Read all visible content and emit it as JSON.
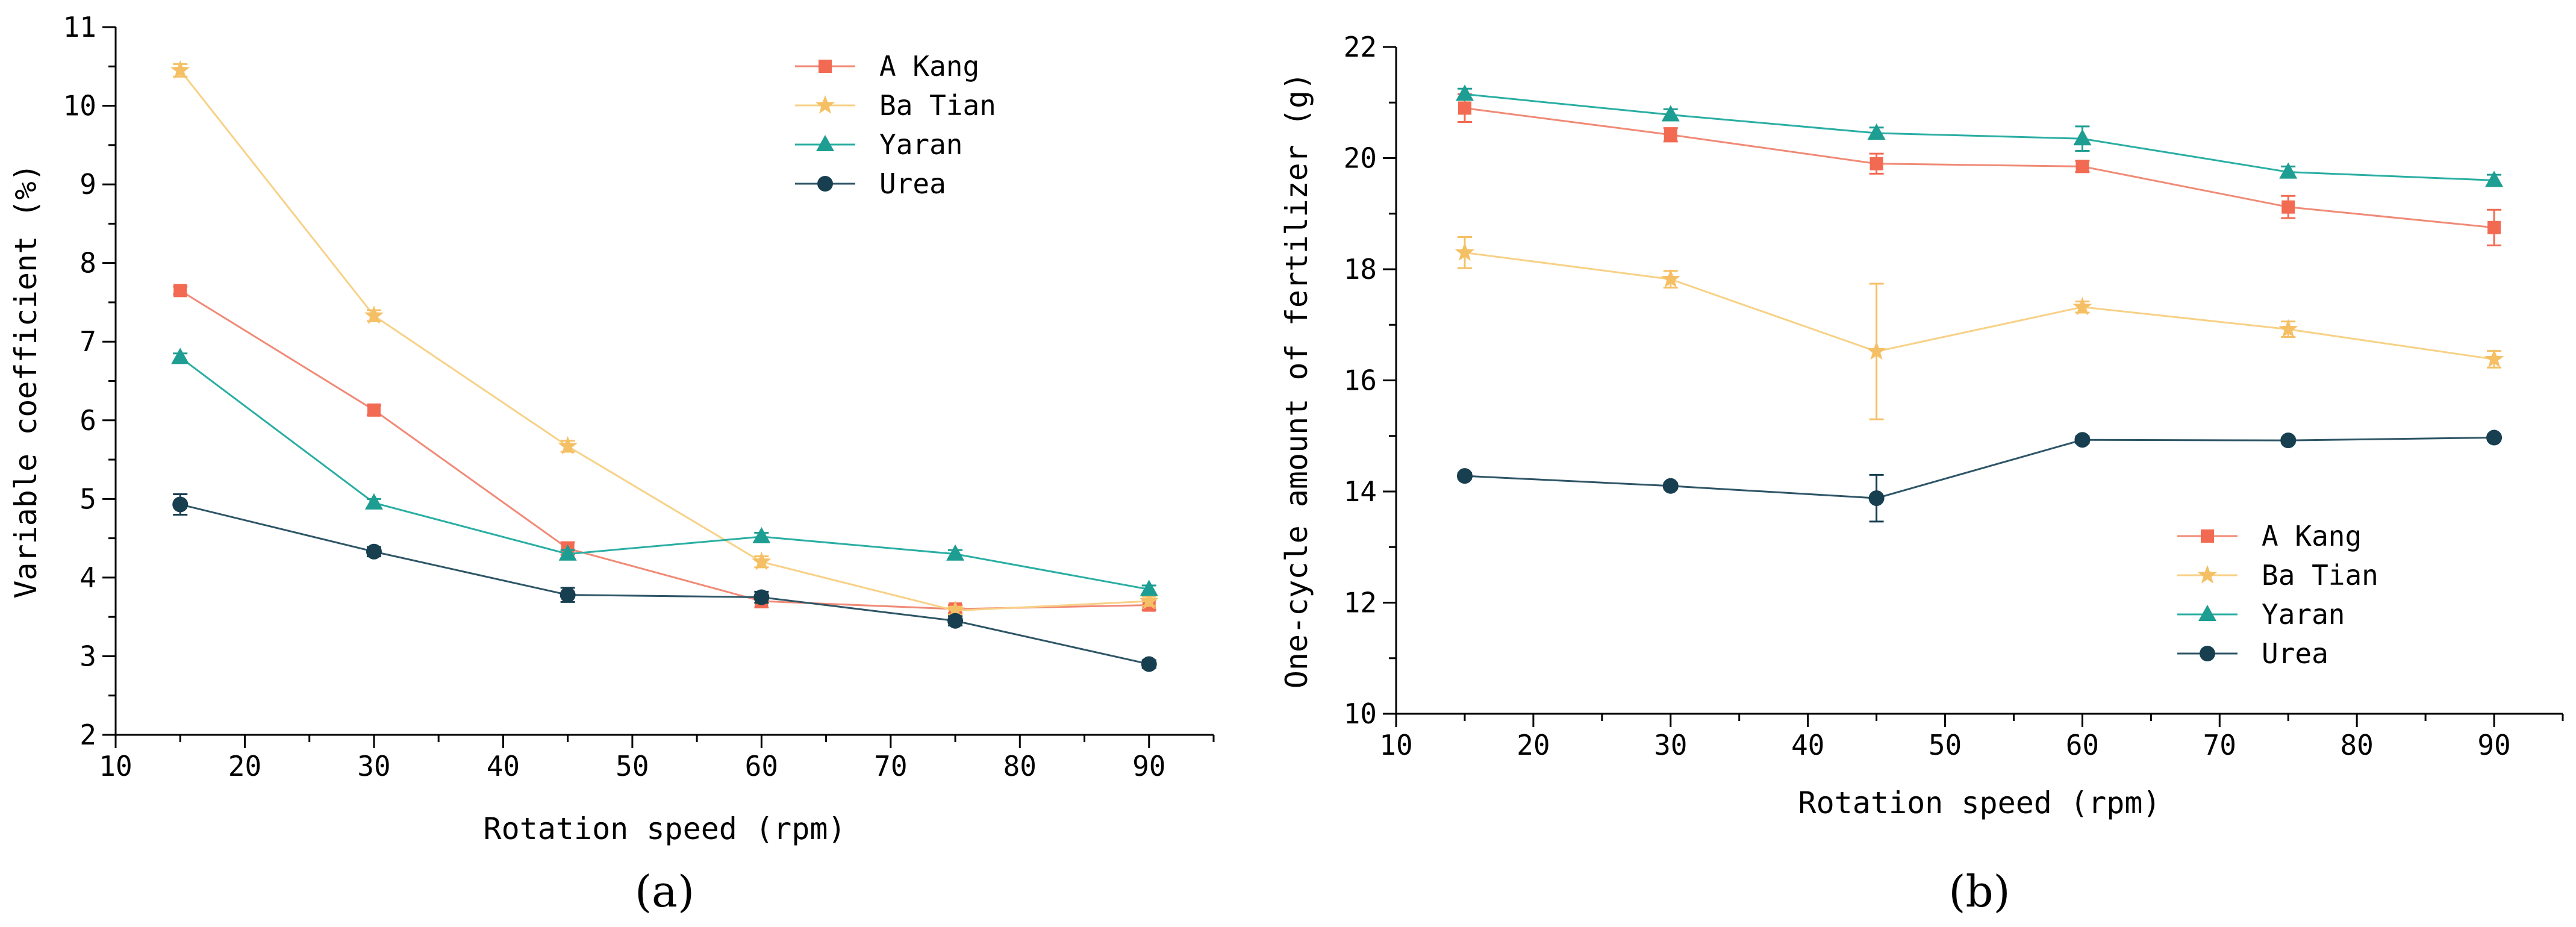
{
  "chart_data": [
    {
      "type": "line",
      "panel_label": "(a)",
      "xlabel": "Rotation speed (rpm)",
      "ylabel": "Variable coefficient (%)",
      "xlim": [
        10,
        95
      ],
      "ylim": [
        2,
        11
      ],
      "xticks": [
        10,
        20,
        30,
        40,
        50,
        60,
        70,
        80,
        90
      ],
      "yticks": [
        2,
        3,
        4,
        5,
        6,
        7,
        8,
        9,
        10,
        11
      ],
      "legend_position": "top-right",
      "x": [
        15,
        30,
        45,
        60,
        75,
        90
      ],
      "series": [
        {
          "name": "A Kang",
          "marker": "square",
          "color": "#f08a76",
          "marker_color": "#f26a52",
          "values": [
            7.65,
            6.13,
            4.37,
            3.7,
            3.6,
            3.65
          ],
          "errors": [
            0.05,
            0.06,
            0.08,
            0.08,
            0.05,
            0.06
          ]
        },
        {
          "name": "Ba Tian",
          "marker": "star",
          "color": "#f7d186",
          "marker_color": "#f5c065",
          "values": [
            10.45,
            7.33,
            5.67,
            4.2,
            3.58,
            3.7
          ],
          "errors": [
            0.08,
            0.07,
            0.07,
            0.07,
            0.05,
            0.06
          ]
        },
        {
          "name": "Yaran",
          "marker": "triangle",
          "color": "#2aaea3",
          "marker_color": "#1e9e92",
          "values": [
            6.8,
            4.95,
            4.3,
            4.52,
            4.3,
            3.85
          ],
          "errors": [
            0.05,
            0.05,
            0.05,
            0.05,
            0.05,
            0.05
          ]
        },
        {
          "name": "Urea",
          "marker": "circle",
          "color": "#2e5566",
          "marker_color": "#173f50",
          "values": [
            4.93,
            4.33,
            3.78,
            3.75,
            3.45,
            2.9
          ],
          "errors": [
            0.13,
            0.06,
            0.09,
            0.07,
            0.06,
            0.05
          ]
        }
      ]
    },
    {
      "type": "line",
      "panel_label": "(b)",
      "xlabel": "Rotation speed (rpm)",
      "ylabel": "One-cycle amount of fertilizer (g)",
      "xlim": [
        10,
        95
      ],
      "ylim": [
        10,
        22
      ],
      "xticks": [
        10,
        20,
        30,
        40,
        50,
        60,
        70,
        80,
        90
      ],
      "yticks": [
        10,
        12,
        14,
        16,
        18,
        20,
        22
      ],
      "legend_position": "bottom-right",
      "x": [
        15,
        30,
        45,
        60,
        75,
        90
      ],
      "series": [
        {
          "name": "A Kang",
          "marker": "square",
          "color": "#f08a76",
          "marker_color": "#f26a52",
          "values": [
            20.9,
            20.42,
            19.9,
            19.85,
            19.12,
            18.75
          ],
          "errors": [
            0.25,
            0.12,
            0.18,
            0.1,
            0.2,
            0.32
          ]
        },
        {
          "name": "Ba Tian",
          "marker": "star",
          "color": "#f7d186",
          "marker_color": "#f5c065",
          "values": [
            18.3,
            17.82,
            16.52,
            17.32,
            16.92,
            16.38
          ],
          "errors": [
            0.28,
            0.15,
            1.22,
            0.1,
            0.14,
            0.15
          ]
        },
        {
          "name": "Yaran",
          "marker": "triangle",
          "color": "#2aaea3",
          "marker_color": "#1e9e92",
          "values": [
            21.15,
            20.78,
            20.45,
            20.35,
            19.75,
            19.6
          ],
          "errors": [
            0.1,
            0.1,
            0.1,
            0.22,
            0.1,
            0.1
          ]
        },
        {
          "name": "Urea",
          "marker": "circle",
          "color": "#2e5566",
          "marker_color": "#173f50",
          "values": [
            14.28,
            14.1,
            13.88,
            14.93,
            14.92,
            14.97
          ],
          "errors": [
            0.05,
            0.05,
            0.42,
            0.06,
            0.05,
            0.05
          ]
        }
      ]
    }
  ]
}
